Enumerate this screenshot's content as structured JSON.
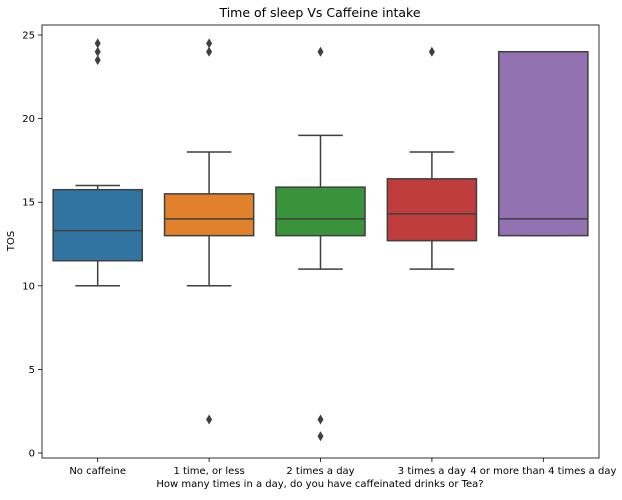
{
  "chart_data": {
    "type": "box",
    "title": "Time of sleep Vs Caffeine intake",
    "xlabel": "How many times in a day, do you have caffeinated drinks or Tea?",
    "ylabel": "TOS",
    "ylim": [
      -0.3,
      25.6
    ],
    "yticks": [
      0,
      5,
      10,
      15,
      20,
      25
    ],
    "grid": false,
    "categories": [
      "No caffeine",
      "1 time, or less",
      "2 times a day",
      "3 times a day",
      "4 or more than 4 times a day"
    ],
    "boxes": [
      {
        "category": "No caffeine",
        "whisker_low": 10,
        "q1": 11.5,
        "median": 13.3,
        "q3": 15.75,
        "whisker_high": 16,
        "outliers": [
          23.5,
          24,
          24.5
        ],
        "color": "#3274a1"
      },
      {
        "category": "1 time, or less",
        "whisker_low": 10,
        "q1": 13,
        "median": 14,
        "q3": 15.5,
        "whisker_high": 18,
        "outliers": [
          2,
          24,
          24.5
        ],
        "color": "#e1812c"
      },
      {
        "category": "2 times a day",
        "whisker_low": 11,
        "q1": 13,
        "median": 14,
        "q3": 15.9,
        "whisker_high": 19,
        "outliers": [
          1,
          2,
          24
        ],
        "color": "#3a923a"
      },
      {
        "category": "3 times a day",
        "whisker_low": 11,
        "q1": 12.7,
        "median": 14.3,
        "q3": 16.4,
        "whisker_high": 18,
        "outliers": [
          24
        ],
        "color": "#c03d3e"
      },
      {
        "category": "4 or more than 4 times a day",
        "whisker_low": 13,
        "q1": 13,
        "median": 14,
        "q3": 24,
        "whisker_high": 24,
        "outliers": [],
        "color": "#9372b2"
      }
    ]
  }
}
